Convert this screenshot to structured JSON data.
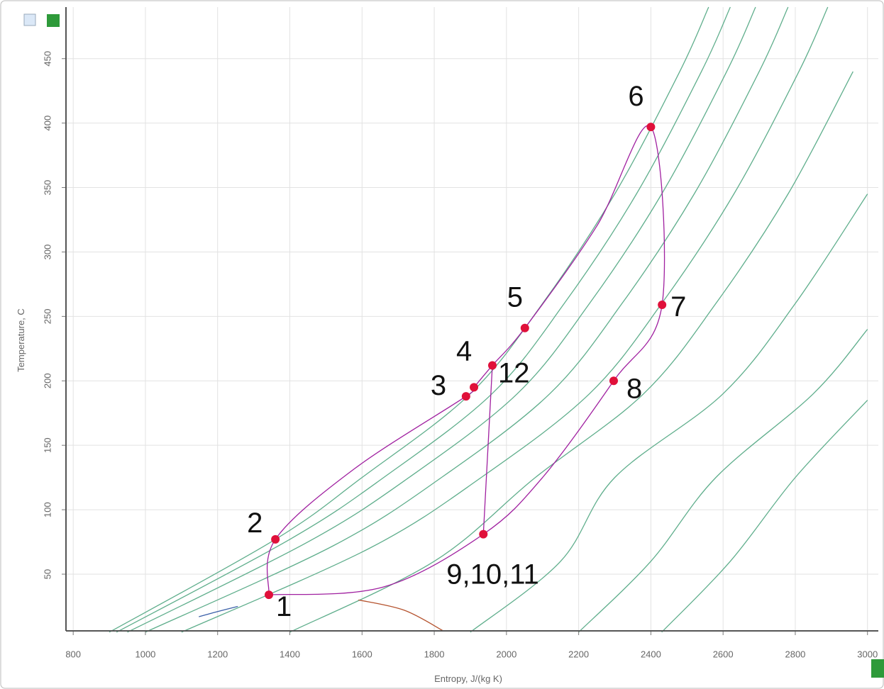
{
  "chart_data": {
    "type": "line",
    "xlabel": "Entropy, J/(kg K)",
    "ylabel": "Temperature, C",
    "xlim": [
      780,
      3030
    ],
    "ylim": [
      6,
      490
    ],
    "xticks": [
      800,
      1000,
      1200,
      1400,
      1600,
      1800,
      2000,
      2200,
      2400,
      2600,
      2800,
      3000
    ],
    "yticks": [
      50,
      100,
      150,
      200,
      250,
      300,
      350,
      400,
      450
    ],
    "grid": true,
    "series": [
      {
        "color": "#5fae8c",
        "x": [
          900,
          1360,
          1600,
          1900,
          2100,
          2300,
          2480,
          2560
        ],
        "y": [
          5,
          77,
          125,
          190,
          260,
          345,
          440,
          490
        ]
      },
      {
        "color": "#5fae8c",
        "x": [
          920,
          1400,
          1660,
          1960,
          2160,
          2360,
          2540,
          2620
        ],
        "y": [
          5,
          77,
          125,
          190,
          260,
          345,
          440,
          490
        ]
      },
      {
        "color": "#5fae8c",
        "x": [
          950,
          1450,
          1730,
          2030,
          2230,
          2430,
          2610,
          2690
        ],
        "y": [
          5,
          75,
          125,
          190,
          260,
          345,
          440,
          490
        ]
      },
      {
        "color": "#5fae8c",
        "x": [
          1000,
          1520,
          1820,
          2120,
          2320,
          2520,
          2700,
          2780
        ],
        "y": [
          5,
          72,
          125,
          190,
          260,
          345,
          440,
          490
        ]
      },
      {
        "color": "#5fae8c",
        "x": [
          1100,
          1620,
          1930,
          2230,
          2430,
          2630,
          2810,
          2890
        ],
        "y": [
          5,
          70,
          125,
          190,
          260,
          345,
          440,
          490
        ]
      },
      {
        "color": "#5fae8c",
        "x": [
          1400,
          1800,
          2080,
          2380,
          2580,
          2780,
          2960
        ],
        "y": [
          5,
          60,
          125,
          190,
          260,
          345,
          440
        ]
      },
      {
        "color": "#5fae8c",
        "x": [
          1900,
          2150,
          2300,
          2600,
          2800,
          3000
        ],
        "y": [
          5,
          60,
          125,
          190,
          260,
          345
        ]
      },
      {
        "color": "#5fae8c",
        "x": [
          2200,
          2400,
          2580,
          2850,
          3000
        ],
        "y": [
          5,
          60,
          125,
          190,
          240
        ]
      },
      {
        "color": "#5fae8c",
        "x": [
          2430,
          2620,
          2800,
          3000
        ],
        "y": [
          5,
          60,
          125,
          185
        ]
      },
      {
        "color": "#3a5fa8",
        "x": [
          1148,
          1200,
          1256
        ],
        "y": [
          17,
          21,
          25
        ]
      },
      {
        "color": "#b5532e",
        "x": [
          1590,
          1717,
          1825
        ],
        "y": [
          30,
          22,
          6
        ]
      },
      {
        "color": "#a020a0",
        "x": [
          1342,
          1360,
          1580,
          1888,
          1910,
          1961,
          2051,
          2250,
          2400,
          2431,
          2297,
          2100,
          1936,
          1659,
          1342
        ],
        "y": [
          34,
          77,
          132,
          188,
          195,
          212,
          241,
          320,
          397,
          259,
          200,
          125,
          81,
          40,
          34
        ]
      },
      {
        "color": "#a020a0",
        "x": [
          1961,
          1936
        ],
        "y": [
          212,
          81
        ]
      }
    ],
    "points": {
      "color": "#e0103a",
      "x": [
        1342,
        1360,
        1888,
        1910,
        1961,
        2051,
        2400,
        2431,
        2297,
        1936
      ],
      "y": [
        34,
        77,
        188,
        195,
        212,
        241,
        397,
        259,
        200,
        81
      ],
      "labels": [
        "1",
        "2",
        "3",
        "4",
        "12",
        "5",
        "6",
        "7",
        "8",
        "9,10,11"
      ]
    }
  }
}
